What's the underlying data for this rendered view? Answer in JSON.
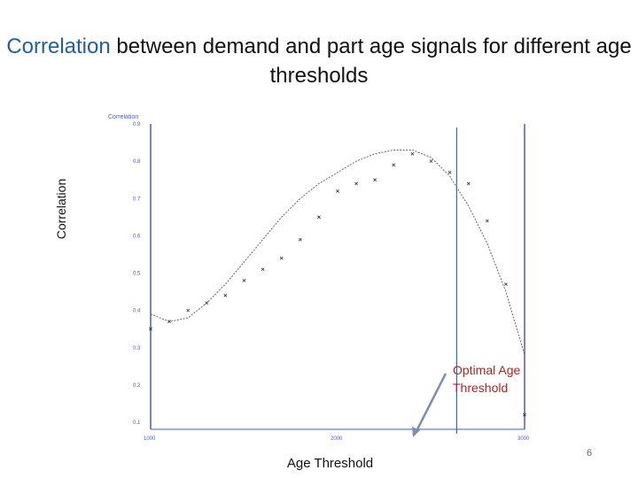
{
  "slide": {
    "title_accent": "Correlation",
    "title_rest": " between demand and part age signals for different age thresholds",
    "page_number": "6"
  },
  "annotation": {
    "line1": "Optimal Age",
    "line2": "Threshold"
  },
  "colors": {
    "accent": "#1f5fa8",
    "annotation": "#b22222",
    "axis": "#4a5ad0",
    "curve": "#666666",
    "threshold_line": "#2e6fb0"
  },
  "chart_data": {
    "type": "scatter",
    "title": "",
    "inner_axis_title": "Correlation",
    "xlabel": "Age Threshold",
    "ylabel": "Correlation",
    "xlim": [
      1000,
      3000
    ],
    "ylim": [
      0.1,
      0.9
    ],
    "x_ticks": [
      "1000",
      "2000",
      "3000"
    ],
    "y_ticks": [
      "0.9",
      "0.8",
      "0.7",
      "0.6",
      "0.5",
      "0.4",
      "0.3",
      "0.2",
      "0.1"
    ],
    "grid": false,
    "series": [
      {
        "kind": "points",
        "x": [
          1000,
          1100,
          1200,
          1300,
          1400,
          1500,
          1600,
          1700,
          1800,
          1900,
          2000,
          2100,
          2200,
          2300,
          2400,
          2500,
          2600,
          2700,
          2800,
          2900,
          3000
        ],
        "y": [
          0.35,
          0.37,
          0.4,
          0.42,
          0.44,
          0.48,
          0.51,
          0.54,
          0.59,
          0.65,
          0.72,
          0.74,
          0.75,
          0.79,
          0.82,
          0.8,
          0.77,
          0.74,
          0.64,
          0.47,
          0.12
        ]
      },
      {
        "kind": "fit",
        "x": [
          1000,
          1100,
          1200,
          1300,
          1400,
          1500,
          1600,
          1700,
          1800,
          1900,
          2000,
          2100,
          2200,
          2300,
          2400,
          2500,
          2600,
          2700,
          2800,
          2900,
          3000
        ],
        "y": [
          0.39,
          0.37,
          0.38,
          0.42,
          0.47,
          0.53,
          0.59,
          0.65,
          0.7,
          0.74,
          0.77,
          0.8,
          0.82,
          0.83,
          0.83,
          0.81,
          0.76,
          0.68,
          0.58,
          0.45,
          0.28
        ]
      }
    ],
    "threshold_line_x": 2400
  }
}
